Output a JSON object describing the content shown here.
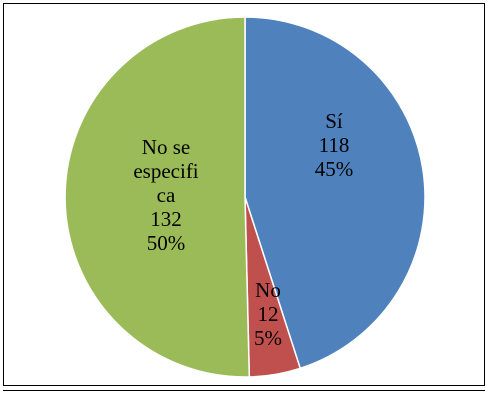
{
  "chart_data": {
    "type": "pie",
    "title": "",
    "slices": [
      {
        "label_lines": [
          "Sí"
        ],
        "value": 118,
        "percent": "45%",
        "color": "#4F81BD"
      },
      {
        "label_lines": [
          "No"
        ],
        "value": 12,
        "percent": "5%",
        "color": "#C0504D"
      },
      {
        "label_lines": [
          "No se",
          "especifi",
          "ca"
        ],
        "value": 132,
        "percent": "50%",
        "color": "#9BBB59"
      }
    ],
    "start_angle_deg": 0,
    "direction": "clockwise",
    "slice_border_color": "#FFFFFF",
    "legend": "none"
  }
}
